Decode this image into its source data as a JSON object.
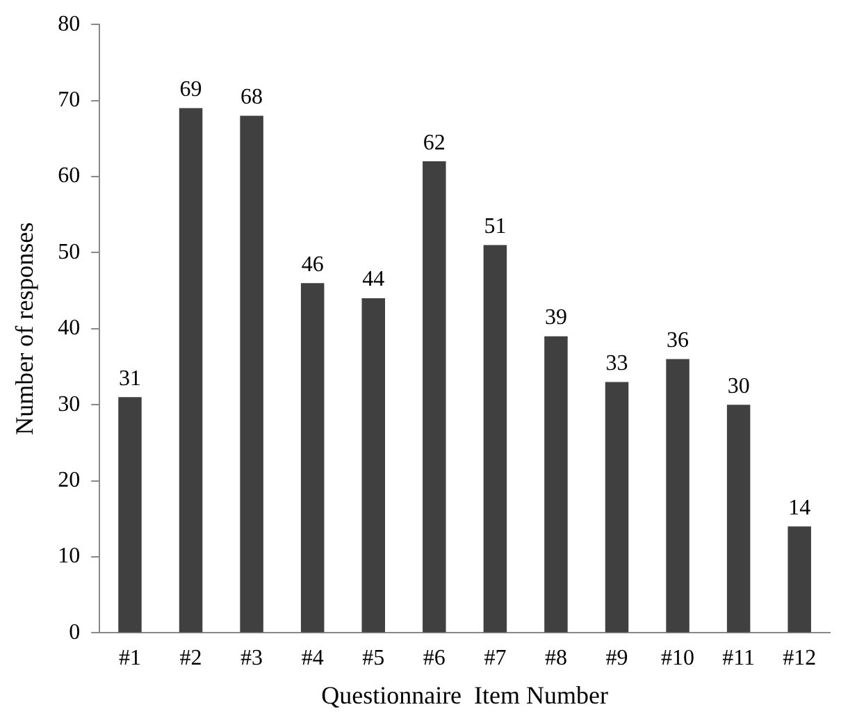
{
  "chart_data": {
    "type": "bar",
    "xlabel": "Questionnaire  Item Number",
    "ylabel": "Number of responses",
    "categories": [
      "#1",
      "#2",
      "#3",
      "#4",
      "#5",
      "#6",
      "#7",
      "#8",
      "#9",
      "#10",
      "#11",
      "#12"
    ],
    "values": [
      31,
      69,
      68,
      46,
      44,
      62,
      51,
      39,
      33,
      36,
      30,
      14
    ],
    "color": "#404040",
    "ylim": [
      0,
      80
    ],
    "yticks": [
      0,
      10,
      20,
      30,
      40,
      50,
      60,
      70,
      80
    ],
    "grid": false,
    "legend": false,
    "data_labels": true
  }
}
